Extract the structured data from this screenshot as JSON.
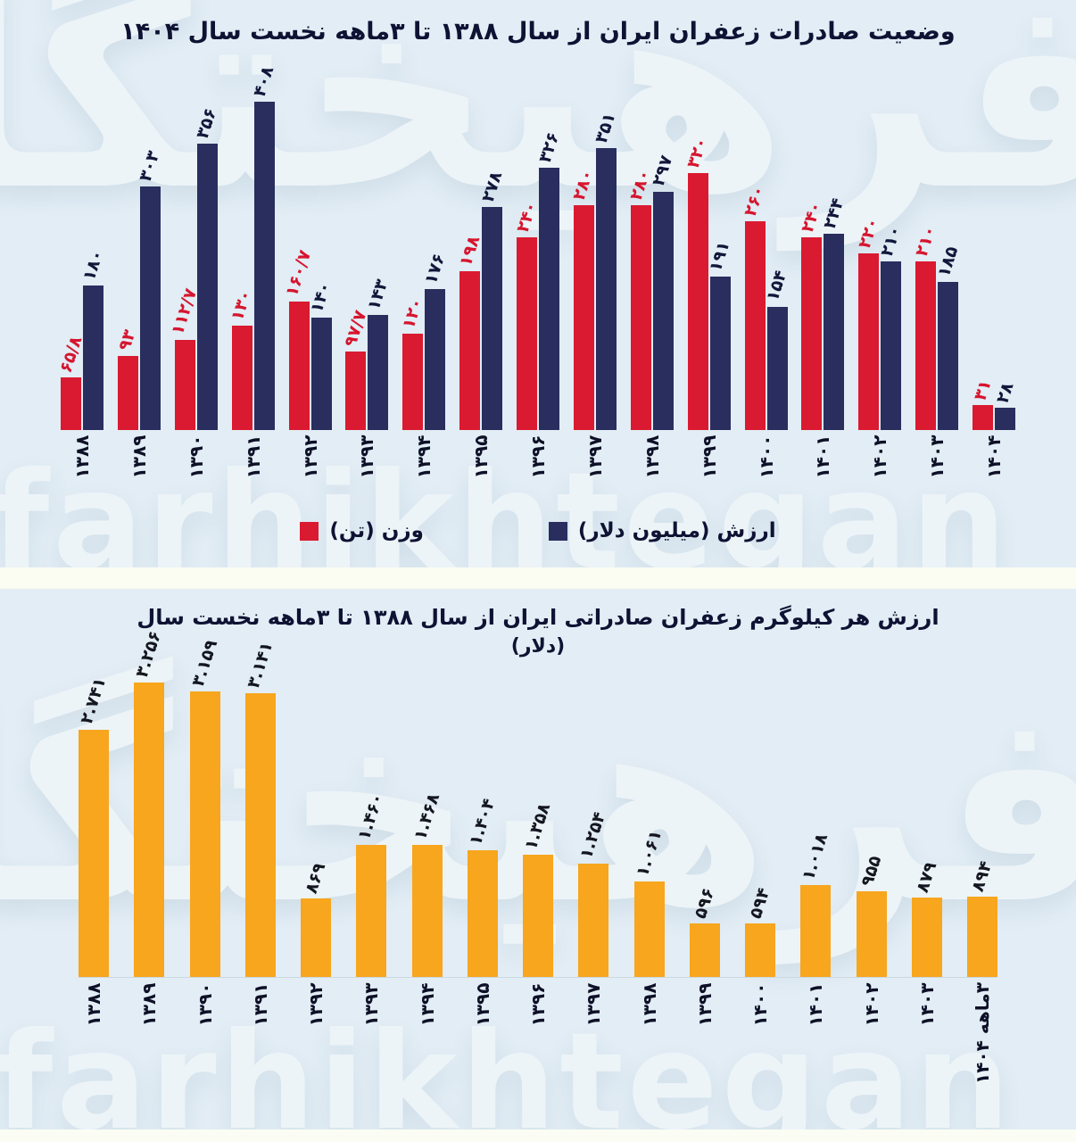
{
  "watermark": {
    "persian": "فرهیختگان",
    "latin": "farhikhtegan"
  },
  "chart_data": [
    {
      "type": "bar",
      "title": "وضعیت صادرات زعفران ایران از سال ۱۳۸۸ تا ۳ماهه نخست سال ۱۴۰۴",
      "categories": [
        "۱۳۸۸",
        "۱۳۸۹",
        "۱۳۹۰",
        "۱۳۹۱",
        "۱۳۹۲",
        "۱۳۹۳",
        "۱۳۹۴",
        "۱۳۹۵",
        "۱۳۹۶",
        "۱۳۹۷",
        "۱۳۹۸",
        "۱۳۹۹",
        "۱۴۰۰",
        "۱۴۰۱",
        "۱۴۰۲",
        "۱۴۰۳",
        "۱۴۰۴"
      ],
      "categories_western": [
        1388,
        1389,
        1390,
        1391,
        1392,
        1393,
        1394,
        1395,
        1396,
        1397,
        1398,
        1399,
        1400,
        1401,
        1402,
        1403,
        1404
      ],
      "series": [
        {
          "name": "وزن (تن)",
          "color": "#da1a31",
          "label_color": "#d6152e",
          "values": [
            65.8,
            93,
            112.7,
            130,
            160.7,
            97.7,
            120,
            198,
            240,
            280,
            280,
            320,
            260,
            240,
            220,
            210,
            31
          ],
          "labels": [
            "۶۵/۸",
            "۹۳",
            "۱۱۲/۷",
            "۱۳۰",
            "۱۶۰/۷",
            "۹۷/۷",
            "۱۲۰",
            "۱۹۸",
            "۲۴۰",
            "۲۸۰",
            "۲۸۰",
            "۳۲۰",
            "۲۶۰",
            "۲۴۰",
            "۲۲۰",
            "۲۱۰",
            "۳۱"
          ]
        },
        {
          "name": "ارزش (میلیون دلار)",
          "color": "#292e5f",
          "label_color": "#11163a",
          "values": [
            180,
            303,
            356,
            408,
            140,
            143,
            176,
            278,
            326,
            351,
            297,
            191,
            154,
            244,
            210,
            185,
            28
          ],
          "labels": [
            "۱۸۰",
            "۳۰۳",
            "۳۵۶",
            "۴۰۸",
            "۱۴۰",
            "۱۴۳",
            "۱۷۶",
            "۲۷۸",
            "۳۲۶",
            "۳۵۱",
            "۲۹۷",
            "۱۹۱",
            "۱۵۴",
            "۲۴۴",
            "۲۱۰",
            "۱۸۵",
            "۲۸"
          ]
        }
      ],
      "legend": [
        {
          "label": "ارزش (میلیون دلار)",
          "color": "#292e5f"
        },
        {
          "label": "وزن (تن)",
          "color": "#da1a31"
        }
      ],
      "ylim": [
        0,
        408
      ],
      "grid": false,
      "legend_position": "bottom"
    },
    {
      "type": "bar",
      "title": "ارزش هر کیلوگرم زعفران صادراتی ایران از سال ۱۳۸۸ تا ۳ماهه نخست سال",
      "subtitle": "(دلار)",
      "categories": [
        "۱۳۸۸",
        "۱۳۸۹",
        "۱۳۹۰",
        "۱۳۹۱",
        "۱۳۹۲",
        "۱۳۹۳",
        "۱۳۹۴",
        "۱۳۹۵",
        "۱۳۹۶",
        "۱۳۹۷",
        "۱۳۹۸",
        "۱۳۹۹",
        "۱۴۰۰",
        "۱۴۰۱",
        "۱۴۰۲",
        "۱۴۰۳",
        "۳ماهه ۱۴۰۴"
      ],
      "values": [
        2741,
        3256,
        3159,
        3141,
        869,
        1460,
        1468,
        1404,
        1358,
        1254,
        1061,
        596,
        594,
        1018,
        955,
        879,
        894
      ],
      "labels": [
        "۲.۷۴۱",
        "۳.۲۵۶",
        "۳.۱۵۹",
        "۳.۱۴۱",
        "۸۶۹",
        "۱.۴۶۰",
        "۱.۴۶۸",
        "۱.۴۰۴",
        "۱.۳۵۸",
        "۱.۲۵۴",
        "۱.۰۶۱",
        "۵۹۶",
        "۵۹۴",
        "۱.۰۱۸",
        "۹۵۵",
        "۸۷۹",
        "۸۹۴"
      ],
      "bar_color": "#f7a61e",
      "label_color": "#14161f",
      "ylim": [
        0,
        3256
      ],
      "grid": false
    }
  ]
}
